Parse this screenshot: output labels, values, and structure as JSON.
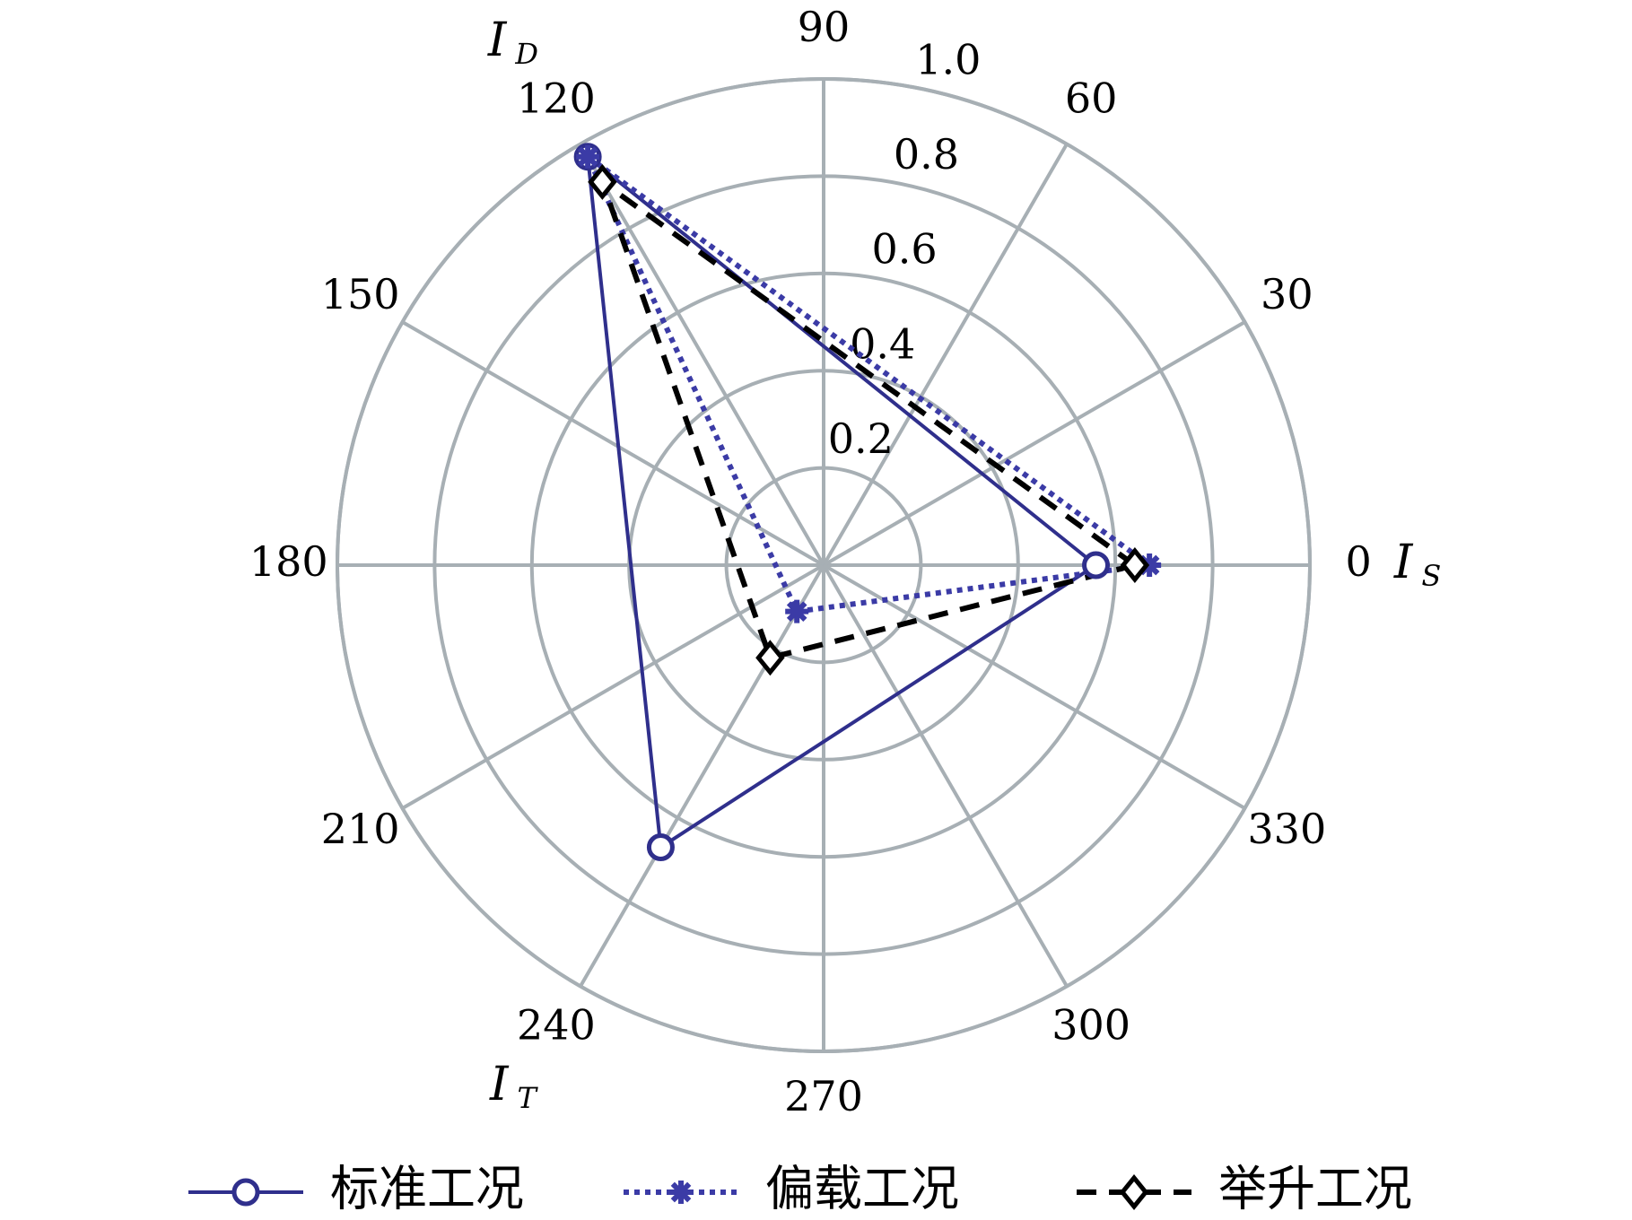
{
  "chart_data": {
    "type": "polar",
    "theta": [
      0,
      120,
      240
    ],
    "axis_labels": [
      {
        "main": "I",
        "sub": "S"
      },
      {
        "main": "I",
        "sub": "D"
      },
      {
        "main": "I",
        "sub": "T"
      }
    ],
    "series": [
      {
        "name": "标准工况",
        "color": "#2f2f8c",
        "line_style": "solid",
        "marker": "circle",
        "values": [
          0.56,
          0.97,
          0.67
        ]
      },
      {
        "name": "偏载工况",
        "color": "#3b3ba6",
        "line_style": "dotted",
        "marker": "star",
        "values": [
          0.67,
          0.97,
          0.11
        ]
      },
      {
        "name": "举升工况",
        "color": "#000000",
        "line_style": "dashed",
        "marker": "diamond",
        "values": [
          0.64,
          0.91,
          0.22
        ]
      }
    ],
    "rlim": [
      0,
      1
    ],
    "rticks": [
      0.2,
      0.4,
      0.6,
      0.8,
      {
        "value": 1,
        "label": "1.0"
      }
    ],
    "thetaticks": [
      0,
      30,
      60,
      90,
      120,
      150,
      180,
      210,
      240,
      270,
      300,
      330
    ],
    "grid": true,
    "grid_color": "#a7afb4"
  }
}
